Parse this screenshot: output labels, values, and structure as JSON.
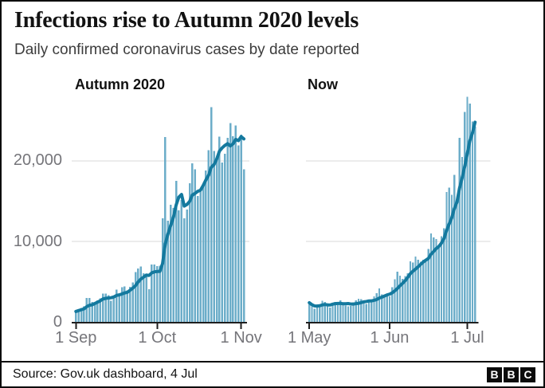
{
  "header": {
    "title": "Infections rise to Autumn 2020 levels",
    "subtitle": "Daily confirmed coronavirus cases by date reported"
  },
  "footer": {
    "source": "Source: Gov.uk dashboard, 4 Jul",
    "logo_letters": [
      "B",
      "B",
      "C"
    ]
  },
  "colors": {
    "bar": "#6cadc9",
    "line": "#14799e",
    "grid": "#d9d9d9",
    "axis": "#1f1f1f",
    "tick_label": "#75757a"
  },
  "chart_data": [
    {
      "type": "bar",
      "title": "Autumn 2020",
      "xlabel": "",
      "ylabel": "",
      "start_date": "1 Sep",
      "end_date": "2 Nov",
      "ylim": [
        0,
        28500
      ],
      "grid": "horizontal",
      "legend": "none",
      "y_ticks": [
        {
          "label": "0",
          "value": 0
        },
        {
          "label": "10,000",
          "value": 10000
        },
        {
          "label": "20,000",
          "value": 20000
        }
      ],
      "x_ticks": [
        {
          "label": "1 Sep",
          "day": 0
        },
        {
          "label": "1 Oct",
          "day": 30
        },
        {
          "label": "1 Nov",
          "day": 61
        }
      ],
      "values": [
        1295,
        1508,
        1735,
        1940,
        2988,
        2948,
        2460,
        2420,
        2659,
        2919,
        3539,
        3497,
        3330,
        2621,
        3105,
        3991,
        3395,
        4322,
        4422,
        3899,
        4368,
        4926,
        6178,
        6634,
        6874,
        6042,
        5693,
        4044,
        7143,
        7108,
        6914,
        6968,
        12872,
        22961,
        12594,
        14542,
        14162,
        17540,
        13864,
        15166,
        12871,
        13972,
        17234,
        19724,
        18980,
        15650,
        16171,
        16982,
        18804,
        21331,
        26688,
        21242,
        20530,
        23012,
        19790,
        20890,
        22885,
        24701,
        23065,
        24405,
        21915,
        23254,
        18950
      ],
      "line_series": "7-day rolling average of daily values (drawn as thick line)"
    },
    {
      "type": "bar",
      "title": "Now",
      "xlabel": "",
      "ylabel": "",
      "start_date": "1 May",
      "end_date": "4 Jul",
      "ylim": [
        0,
        28500
      ],
      "grid": "horizontal",
      "legend": "none",
      "y_ticks": [
        {
          "label": "0",
          "value": 0
        },
        {
          "label": "10,000",
          "value": 10000
        },
        {
          "label": "20,000",
          "value": 20000
        }
      ],
      "x_ticks": [
        {
          "label": "1 May",
          "day": 0
        },
        {
          "label": "1 Jun",
          "day": 31
        },
        {
          "label": "1 Jul",
          "day": 61
        }
      ],
      "values": [
        2381,
        1907,
        1649,
        1946,
        2144,
        2613,
        2490,
        2047,
        1770,
        2357,
        2474,
        2284,
        2657,
        2193,
        2027,
        1926,
        1979,
        2412,
        2696,
        2874,
        2829,
        2694,
        2235,
        2439,
        2493,
        3180,
        3542,
        4182,
        3398,
        3240,
        3383,
        3165,
        4330,
        5274,
        6238,
        5765,
        5341,
        5683,
        6048,
        7540,
        7393,
        8125,
        7738,
        7490,
        7742,
        7673,
        9055,
        11007,
        10476,
        10321,
        9284,
        10633,
        11625,
        16135,
        16703,
        15810,
        18270,
        14876,
        22868,
        20479,
        26068,
        27989,
        27125,
        24885,
        24248
      ],
      "line_series": "7-day rolling average of daily values (drawn as thick line)"
    }
  ]
}
